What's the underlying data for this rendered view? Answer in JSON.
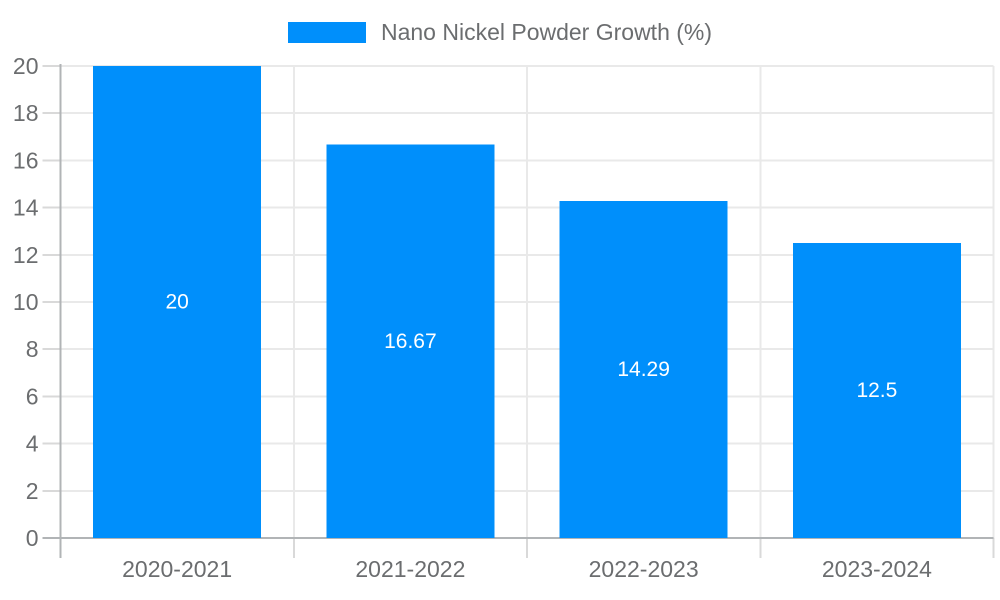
{
  "chart_data": {
    "type": "bar",
    "title": "Nano Nickel Powder Growth (%)",
    "legend_position": "top",
    "categories": [
      "2020-2021",
      "2021-2022",
      "2022-2023",
      "2023-2024"
    ],
    "series": [
      {
        "name": "Nano Nickel Powder Growth (%)",
        "values": [
          20,
          16.67,
          14.29,
          12.5
        ]
      }
    ],
    "values": [
      20,
      16.67,
      14.29,
      12.5
    ],
    "bar_labels": [
      "20",
      "16.67",
      "14.29",
      "12.5"
    ],
    "xlabel": "",
    "ylabel": "",
    "ylim": [
      0,
      20
    ],
    "yticks": [
      0,
      2,
      4,
      6,
      8,
      10,
      12,
      14,
      16,
      18,
      20
    ],
    "grid": true,
    "colors": {
      "bar": "#008FFB",
      "bar_label": "#FFFFFF",
      "axis_text": "#6B6D6F",
      "gridline": "#E9E9E9",
      "axis_line": "#B1B4B6",
      "tick": "#D9D9D9",
      "background": "#FFFFFF"
    }
  }
}
